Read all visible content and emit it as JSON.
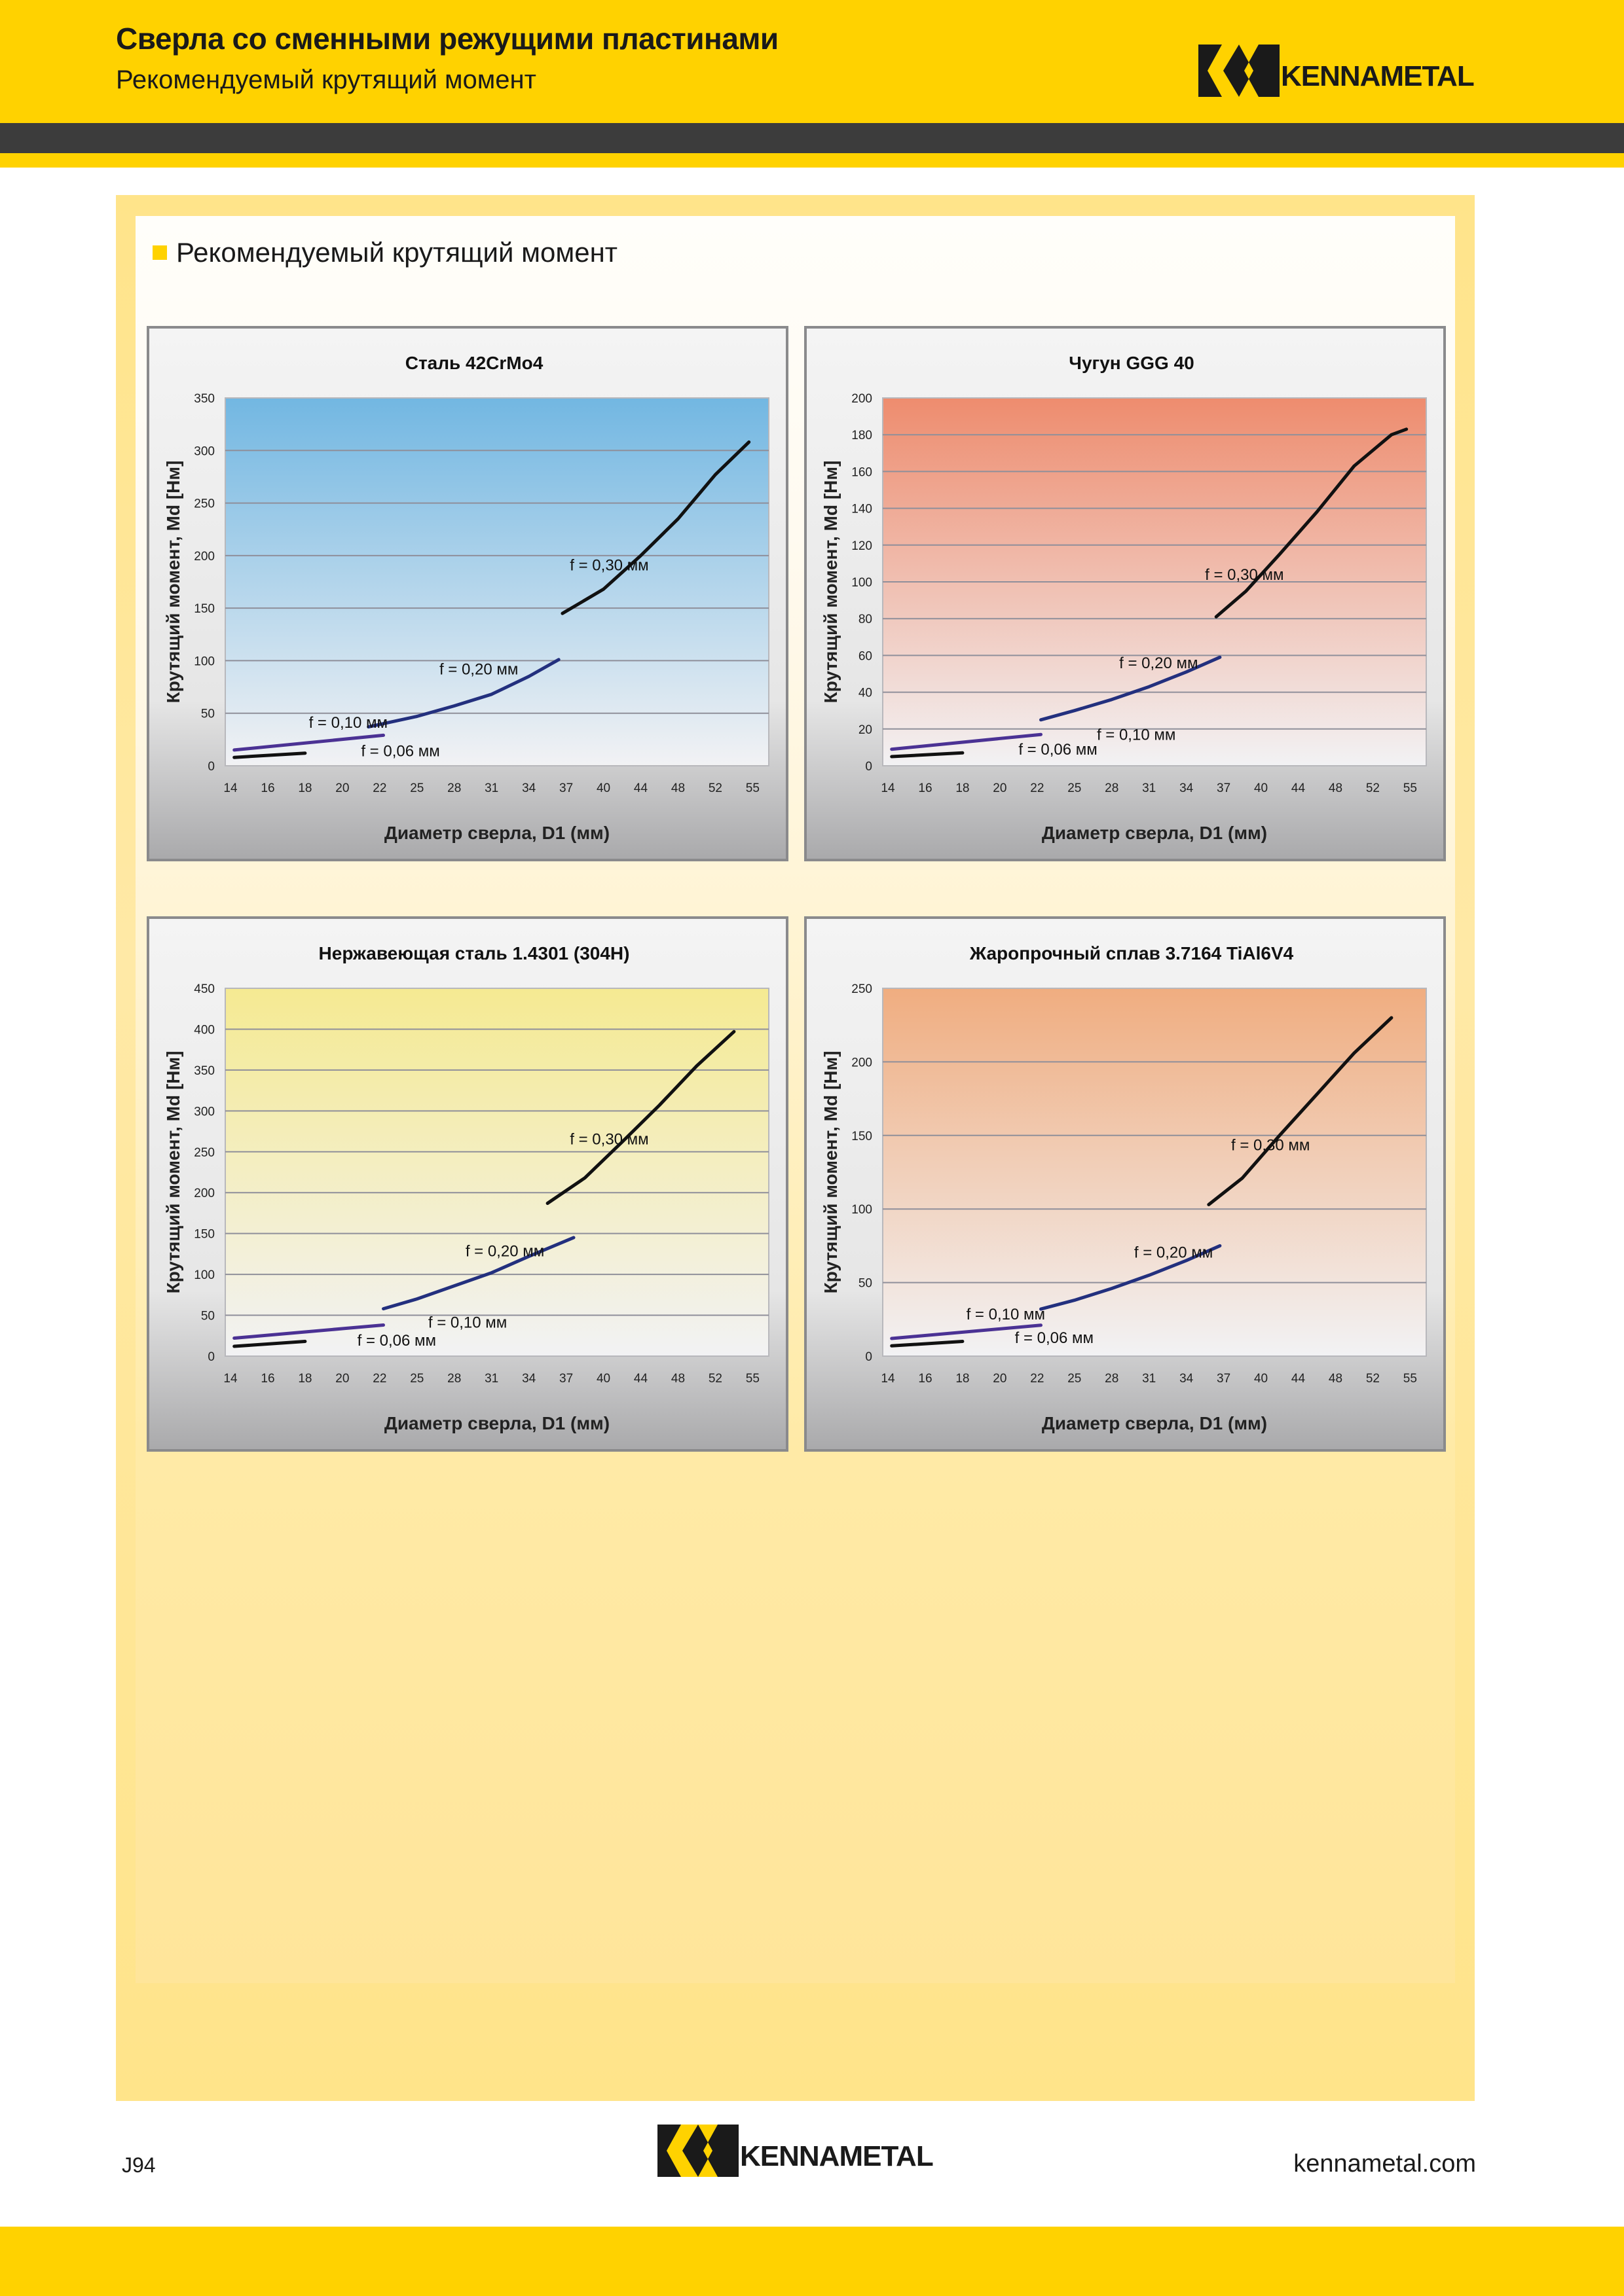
{
  "header": {
    "title": "Сверла со сменными режущими пластинами",
    "subtitle": "Рекомендуемый крутящий момент",
    "logo_text": "KENNAMETAL"
  },
  "section_title": "Рекомендуемый крутящий момент",
  "colors": {
    "brand_yellow": "#ffd200",
    "dark_bar": "#3c3c3c",
    "series_dark": "#111111",
    "series_blue": "#23307e",
    "series_violet": "#4b3294"
  },
  "chart_data": [
    {
      "type": "line",
      "title": "Сталь 42CrMo4",
      "xlabel": "Диаметр сверла, D1 (мм)",
      "ylabel": "Крутящий момент, Md [Нм]",
      "categories": [
        "14",
        "16",
        "18",
        "20",
        "22",
        "25",
        "28",
        "31",
        "34",
        "37",
        "40",
        "44",
        "48",
        "52",
        "55"
      ],
      "ylim": [
        0,
        350
      ],
      "yticks": [
        0,
        50,
        100,
        150,
        200,
        250,
        300,
        350
      ],
      "grid": true,
      "background": [
        "#72b7e2",
        "#f2f2f4"
      ],
      "series": [
        {
          "name": "f = 0,06 мм",
          "color": "#111111",
          "x": [
            0.1,
            2.0
          ],
          "y": [
            8,
            12
          ]
        },
        {
          "name": "f = 0,10 мм",
          "color": "#4b3294",
          "x": [
            0.1,
            4.1
          ],
          "y": [
            15,
            29
          ]
        },
        {
          "name": "f = 0,20 мм",
          "color": "#23307e",
          "x": [
            3.7,
            5.0,
            6.0,
            7.0,
            8.0,
            8.8
          ],
          "y": [
            37,
            47,
            57,
            68,
            85,
            101
          ]
        },
        {
          "name": "f = 0,30 мм",
          "color": "#111111",
          "x": [
            8.9,
            10.0,
            11.0,
            12.0,
            13.0,
            13.9
          ],
          "y": [
            145,
            168,
            200,
            235,
            277,
            308
          ]
        }
      ],
      "annotations": [
        {
          "text": "f = 0,30 мм",
          "x": 9.1,
          "y": 186
        },
        {
          "text": "f = 0,20 мм",
          "x": 5.6,
          "y": 87
        },
        {
          "text": "f = 0,10 мм",
          "x": 2.1,
          "y": 36
        },
        {
          "text": "f = 0,06 мм",
          "x": 3.5,
          "y": 9
        }
      ]
    },
    {
      "type": "line",
      "title": "Чугун GGG 40",
      "xlabel": "Диаметр сверла, D1 (мм)",
      "ylabel": "Крутящий момент, Md [Нм]",
      "categories": [
        "14",
        "16",
        "18",
        "20",
        "22",
        "25",
        "28",
        "31",
        "34",
        "37",
        "40",
        "44",
        "48",
        "52",
        "55"
      ],
      "ylim": [
        0,
        200
      ],
      "yticks": [
        0,
        20,
        40,
        60,
        80,
        100,
        120,
        140,
        160,
        180,
        200
      ],
      "grid": true,
      "background": [
        "#ee8c6e",
        "#f2f2f4"
      ],
      "series": [
        {
          "name": "f = 0,06 мм",
          "color": "#111111",
          "x": [
            0.1,
            2.0
          ],
          "y": [
            5,
            7
          ]
        },
        {
          "name": "f = 0,10 мм",
          "color": "#4b3294",
          "x": [
            0.1,
            4.1
          ],
          "y": [
            9,
            17
          ]
        },
        {
          "name": "f = 0,20 мм",
          "color": "#23307e",
          "x": [
            4.1,
            5.0,
            6.0,
            7.0,
            8.0,
            8.9
          ],
          "y": [
            25,
            30,
            36,
            43,
            51,
            59
          ]
        },
        {
          "name": "f = 0,30 мм",
          "color": "#111111",
          "x": [
            8.8,
            9.6,
            10.5,
            11.5,
            12.5,
            13.5,
            13.9
          ],
          "y": [
            81,
            95,
            115,
            138,
            163,
            180,
            183
          ]
        }
      ],
      "annotations": [
        {
          "text": "f = 0,30 мм",
          "x": 8.5,
          "y": 101
        },
        {
          "text": "f = 0,20 мм",
          "x": 6.2,
          "y": 53
        },
        {
          "text": "f = 0,10 мм",
          "x": 5.6,
          "y": 14
        },
        {
          "text": "f = 0,06 мм",
          "x": 3.5,
          "y": 6
        }
      ]
    },
    {
      "type": "line",
      "title": "Нержавеющая сталь 1.4301 (304H)",
      "xlabel": "Диаметр сверла, D1 (мм)",
      "ylabel": "Крутящий момент, Md [Нм]",
      "categories": [
        "14",
        "16",
        "18",
        "20",
        "22",
        "25",
        "28",
        "31",
        "34",
        "37",
        "40",
        "44",
        "48",
        "52",
        "55"
      ],
      "ylim": [
        0,
        450
      ],
      "yticks": [
        0,
        50,
        100,
        150,
        200,
        250,
        300,
        350,
        400,
        450
      ],
      "grid": true,
      "background": [
        "#f5ea92",
        "#f2f2f4"
      ],
      "series": [
        {
          "name": "f = 0,06 мм",
          "color": "#111111",
          "x": [
            0.1,
            2.0
          ],
          "y": [
            12,
            18
          ]
        },
        {
          "name": "f = 0,10 мм",
          "color": "#4b3294",
          "x": [
            0.1,
            4.1
          ],
          "y": [
            22,
            38
          ]
        },
        {
          "name": "f = 0,20 мм",
          "color": "#23307e",
          "x": [
            4.1,
            5.0,
            6.0,
            7.0,
            8.0,
            9.2
          ],
          "y": [
            58,
            70,
            86,
            102,
            122,
            145
          ]
        },
        {
          "name": "f = 0,30 мм",
          "color": "#111111",
          "x": [
            8.5,
            9.5,
            10.5,
            11.5,
            12.5,
            13.5
          ],
          "y": [
            187,
            218,
            262,
            307,
            355,
            397
          ]
        }
      ],
      "annotations": [
        {
          "text": "f = 0,30 мм",
          "x": 9.1,
          "y": 259
        },
        {
          "text": "f = 0,20 мм",
          "x": 6.3,
          "y": 122
        },
        {
          "text": "f = 0,10 мм",
          "x": 5.3,
          "y": 35
        },
        {
          "text": "f = 0,06 мм",
          "x": 3.4,
          "y": 13
        }
      ]
    },
    {
      "type": "line",
      "title": "Жаропрочный сплав 3.7164 TiAl6V4",
      "xlabel": "Диаметр сверла, D1 (мм)",
      "ylabel": "Крутящий момент, Md [Нм]",
      "categories": [
        "14",
        "16",
        "18",
        "20",
        "22",
        "25",
        "28",
        "31",
        "34",
        "37",
        "40",
        "44",
        "48",
        "52",
        "55"
      ],
      "ylim": [
        0,
        250
      ],
      "yticks": [
        0,
        50,
        100,
        150,
        200,
        250
      ],
      "grid": true,
      "background": [
        "#f0ad80",
        "#f2f2f4"
      ],
      "series": [
        {
          "name": "f = 0,06 мм",
          "color": "#111111",
          "x": [
            0.1,
            2.0
          ],
          "y": [
            7,
            10
          ]
        },
        {
          "name": "f = 0,10 мм",
          "color": "#4b3294",
          "x": [
            0.1,
            4.1
          ],
          "y": [
            12,
            21
          ]
        },
        {
          "name": "f = 0,20 мм",
          "color": "#23307e",
          "x": [
            4.1,
            5.0,
            6.0,
            7.0,
            8.0,
            8.9
          ],
          "y": [
            32,
            38,
            46,
            55,
            65,
            75
          ]
        },
        {
          "name": "f = 0,30 мм",
          "color": "#111111",
          "x": [
            8.6,
            9.5,
            10.5,
            11.5,
            12.5,
            13.5
          ],
          "y": [
            103,
            121,
            150,
            178,
            206,
            230
          ]
        }
      ],
      "annotations": [
        {
          "text": "f = 0,30 мм",
          "x": 9.2,
          "y": 140
        },
        {
          "text": "f = 0,20 мм",
          "x": 6.6,
          "y": 67
        },
        {
          "text": "f = 0,10 мм",
          "x": 2.1,
          "y": 25
        },
        {
          "text": "f = 0,06 мм",
          "x": 3.4,
          "y": 9
        }
      ]
    }
  ],
  "footer": {
    "page_code": "J94",
    "url": "kennametal.com",
    "logo_text": "KENNAMETAL"
  }
}
